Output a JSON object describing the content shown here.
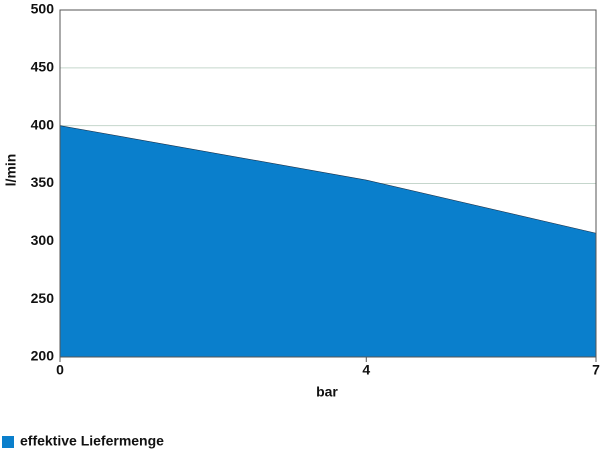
{
  "chart_data": {
    "type": "area",
    "x_label": "bar",
    "y_label": "l/min",
    "x": [
      0,
      4,
      7
    ],
    "series": [
      {
        "name": "effektive Liefermenge",
        "color": "#0a7fcc",
        "values": [
          400,
          353,
          307
        ]
      }
    ],
    "xlim": [
      0,
      7
    ],
    "xticks": [
      0,
      4,
      7
    ],
    "ylim": [
      200,
      500
    ],
    "yticks": [
      200,
      250,
      300,
      350,
      400,
      450,
      500
    ],
    "grid": true,
    "legend": "bottom-left"
  }
}
